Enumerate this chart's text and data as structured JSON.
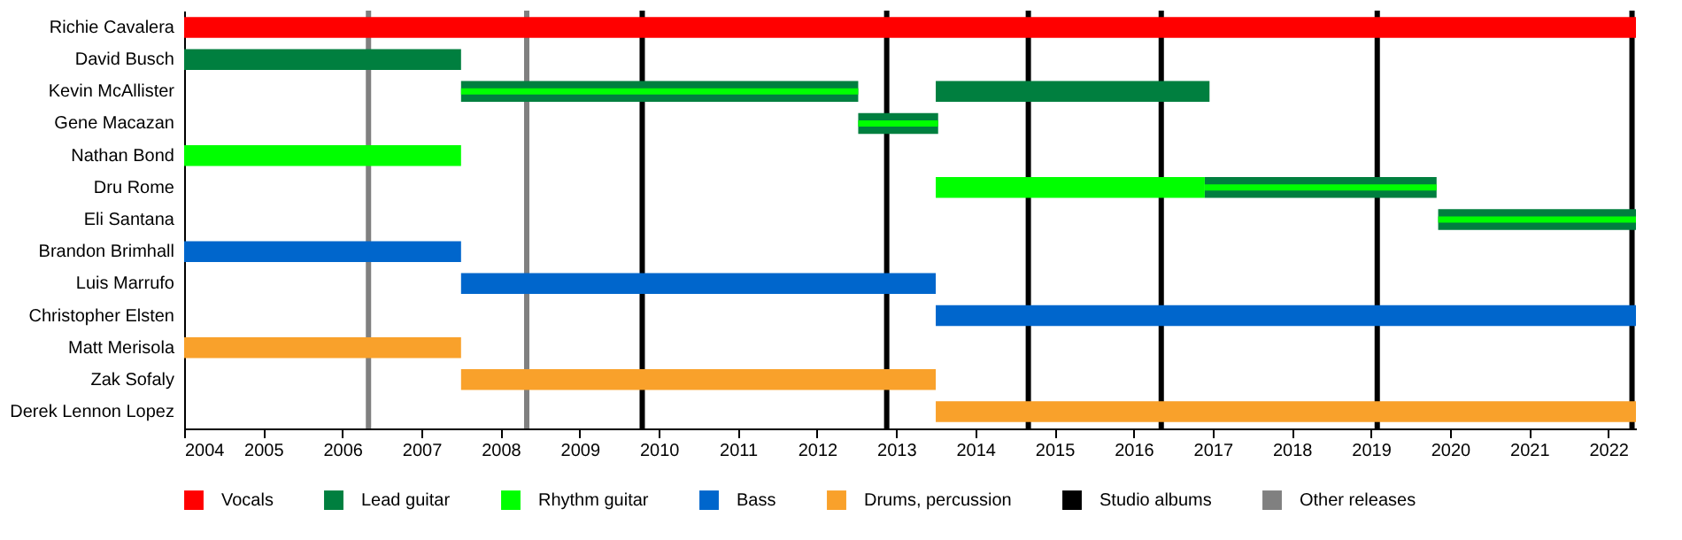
{
  "chart_data": {
    "type": "bar",
    "orientation": "horizontal",
    "legend": "bottom",
    "grid": false,
    "categories": [
      "Richie Cavalera",
      "David Busch",
      "Kevin McAllister",
      "Gene Macazan",
      "Nathan Bond",
      "Dru Rome",
      "Eli Santana",
      "Brandon Brimhall",
      "Luis Marrufo",
      "Christopher Elsten",
      "Matt Merisola",
      "Zak Sofaly",
      "Derek Lennon Lopez"
    ],
    "xlim": [
      2004,
      2022.35
    ],
    "xticks": [
      2004,
      2005,
      2006,
      2007,
      2008,
      2009,
      2010,
      2011,
      2012,
      2013,
      2014,
      2015,
      2016,
      2017,
      2018,
      2019,
      2020,
      2021,
      2022
    ],
    "series": [
      {
        "name": "Vocals",
        "color": "#ff0000",
        "base": [
          2004,
          null,
          null,
          null,
          null,
          null,
          null,
          null,
          null,
          null,
          null,
          null,
          null
        ],
        "values": [
          18.35,
          null,
          null,
          null,
          null,
          null,
          null,
          null,
          null,
          null,
          null,
          null,
          null
        ]
      },
      {
        "name": "Lead guitar",
        "color": "#007f3f",
        "base": [
          null,
          2004,
          2007.5,
          2012.52,
          null,
          2016.9,
          2019.85,
          null,
          null,
          null,
          null,
          null,
          null
        ],
        "values": [
          null,
          3.5,
          5.02,
          1.01,
          null,
          2.93,
          2.5,
          null,
          null,
          null,
          null,
          null,
          null
        ]
      },
      {
        "color": "#007f3f",
        "base": [
          null,
          null,
          2013.5,
          null,
          null,
          null,
          null,
          null,
          null,
          null,
          null,
          null,
          null
        ],
        "values": [
          null,
          null,
          3.46,
          null,
          null,
          null,
          null,
          null,
          null,
          null,
          null,
          null,
          null
        ]
      },
      {
        "name": "Rhythm guitar",
        "color": "#00ff00",
        "base": [
          null,
          null,
          null,
          null,
          2004,
          2013.5,
          null,
          null,
          null,
          null,
          null,
          null,
          null
        ],
        "values": [
          null,
          null,
          null,
          null,
          3.5,
          3.4,
          null,
          null,
          null,
          null,
          null,
          null,
          null
        ]
      },
      {
        "color": "#00ff00",
        "base": [
          null,
          null,
          2007.5,
          2012.52,
          null,
          2016.9,
          2019.85,
          null,
          null,
          null,
          null,
          null,
          null
        ],
        "values": [
          null,
          null,
          5.02,
          1.01,
          null,
          2.93,
          2.5,
          null,
          null,
          null,
          null,
          null,
          null
        ]
      },
      {
        "name": "Bass",
        "color": "#0066cc",
        "base": [
          null,
          null,
          null,
          null,
          null,
          null,
          null,
          2004,
          2007.5,
          2013.5,
          null,
          null,
          null
        ],
        "values": [
          null,
          null,
          null,
          null,
          null,
          null,
          null,
          3.5,
          6,
          8.85,
          null,
          null,
          null
        ]
      },
      {
        "name": "Drums, percussion",
        "color": "#f9a12b",
        "base": [
          null,
          null,
          null,
          null,
          null,
          null,
          null,
          null,
          null,
          null,
          2004,
          2007.5,
          2013.5
        ],
        "values": [
          null,
          null,
          null,
          null,
          null,
          null,
          null,
          null,
          null,
          null,
          3.5,
          6,
          8.85
        ]
      }
    ],
    "ref_lines": [
      {
        "axis": "x",
        "value": 2009.79,
        "label": "Studio albums",
        "color": "#000000"
      },
      {
        "axis": "x",
        "value": 2012.88,
        "color": "#000000"
      },
      {
        "axis": "x",
        "value": 2014.67,
        "color": "#000000"
      },
      {
        "axis": "x",
        "value": 2016.35,
        "color": "#000000"
      },
      {
        "axis": "x",
        "value": 2019.08,
        "color": "#000000"
      },
      {
        "axis": "x",
        "value": 2022.3,
        "color": "#000000"
      },
      {
        "axis": "x",
        "value": 2006.33,
        "label": "Other releases",
        "color": "#808080"
      },
      {
        "axis": "x",
        "value": 2008.33,
        "color": "#808080"
      }
    ]
  }
}
